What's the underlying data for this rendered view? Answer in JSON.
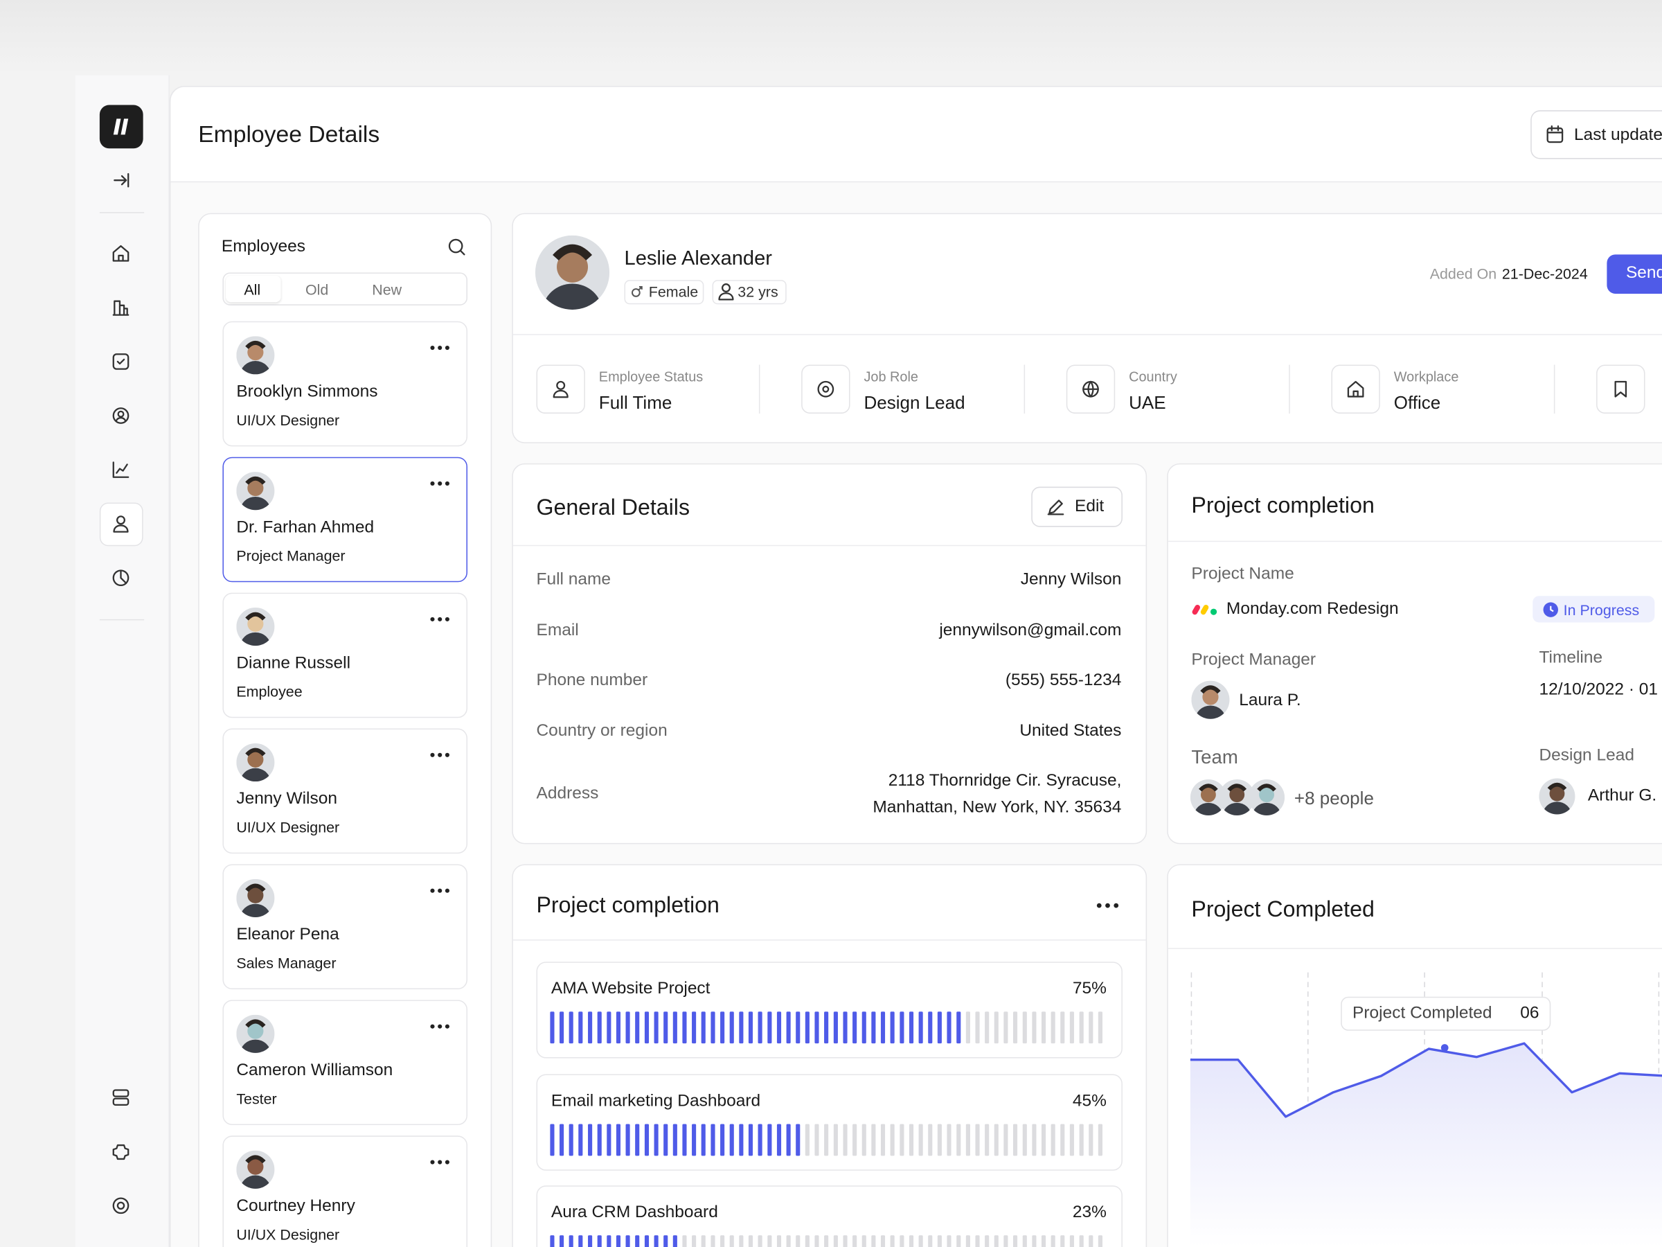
{
  "header": {
    "title": "Employee Details",
    "last_updated": "Last update"
  },
  "employees": {
    "title": "Employees",
    "tabs": [
      "All",
      "Old",
      "New"
    ],
    "list": [
      {
        "name": "Brooklyn Simmons",
        "role": "UI/UX Designer"
      },
      {
        "name": "Dr. Farhan Ahmed",
        "role": "Project Manager"
      },
      {
        "name": "Dianne Russell",
        "role": "Employee"
      },
      {
        "name": "Jenny Wilson",
        "role": "UI/UX Designer"
      },
      {
        "name": "Eleanor Pena",
        "role": "Sales Manager"
      },
      {
        "name": "Cameron Williamson",
        "role": "Tester"
      },
      {
        "name": "Courtney Henry",
        "role": "UI/UX Designer"
      }
    ]
  },
  "profile": {
    "name": "Leslie Alexander",
    "gender": "Female",
    "age": "32 yrs",
    "added_on_label": "Added On",
    "added_on": "21-Dec-2024",
    "send_button": "Send"
  },
  "stats": [
    {
      "label": "Employee Status",
      "value": "Full Time"
    },
    {
      "label": "Job Role",
      "value": "Design Lead"
    },
    {
      "label": "Country",
      "value": "UAE"
    },
    {
      "label": "Workplace",
      "value": "Office"
    }
  ],
  "general_details": {
    "title": "General Details",
    "edit": "Edit",
    "rows": [
      {
        "label": "Full name",
        "lines": [
          "Jenny Wilson"
        ]
      },
      {
        "label": "Email",
        "lines": [
          "jennywilson@gmail.com"
        ]
      },
      {
        "label": "Phone number",
        "lines": [
          "(555) 555-1234"
        ]
      },
      {
        "label": "Country or region",
        "lines": [
          "United States"
        ]
      },
      {
        "label": "Address",
        "lines": [
          "2118 Thornridge Cir. Syracuse,",
          "Manhattan, New York, NY. 35634"
        ]
      }
    ]
  },
  "project_card": {
    "title": "Project completion",
    "project_name_label": "Project Name",
    "project_name": "Monday.com Redesign",
    "status": "In Progress",
    "manager_label": "Project Manager",
    "manager": "Laura P.",
    "timeline_label": "Timeline",
    "timeline": "12/10/2022 · 01",
    "team_label": "Team",
    "team_more": "+8 people",
    "design_lead_label": "Design Lead",
    "design_lead": "Arthur G."
  },
  "progress": {
    "title": "Project completion",
    "projects": [
      {
        "name": "AMA Website Project",
        "value": 75,
        "label": "75%"
      },
      {
        "name": "Email marketing Dashboard",
        "value": 45,
        "label": "45%"
      },
      {
        "name": "Aura CRM Dashboard",
        "value": 23,
        "label": "23%"
      }
    ]
  },
  "completed_chart": {
    "title": "Project Completed",
    "tooltip_label": "Project Completed",
    "tooltip_value": "06",
    "values": [
      6.9,
      6.9,
      4.8,
      5.7,
      6.3,
      7.3,
      7.0,
      7.5,
      5.7,
      6.4,
      6.3
    ],
    "ylim": [
      0,
      10
    ]
  }
}
